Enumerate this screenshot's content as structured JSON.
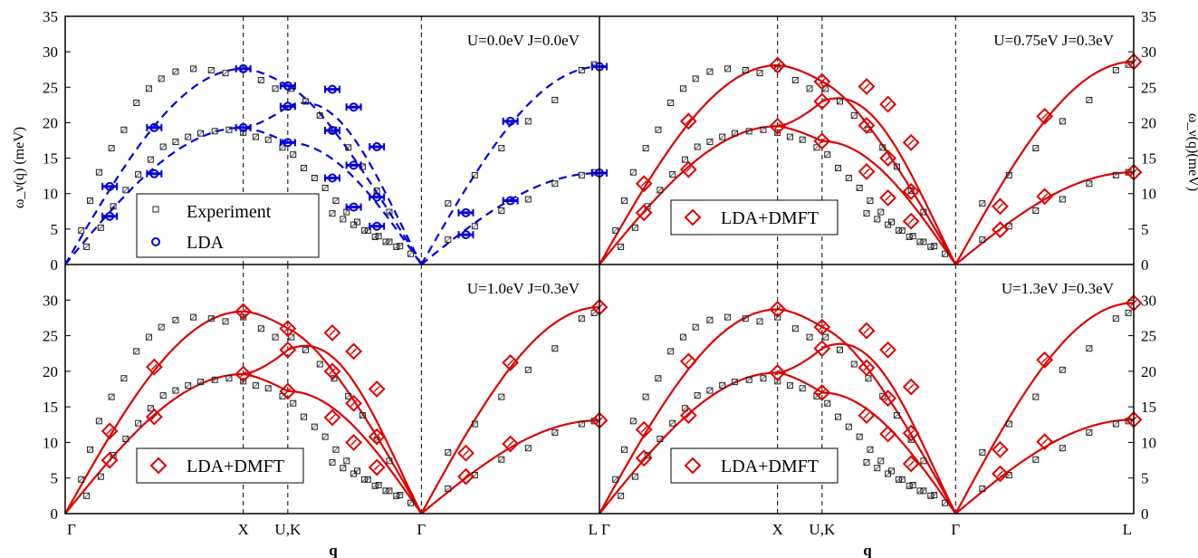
{
  "figure": {
    "ylabel_left": "ω_ν(q) (meV)",
    "ylabel_right": "ω_ν(q)(meV)",
    "xlabel": "q",
    "y_ticks": [
      "0",
      "5",
      "10",
      "15",
      "20",
      "25",
      "30",
      "35"
    ],
    "x_ticks": [
      "Γ",
      "X",
      "U,K",
      "Γ",
      "L"
    ],
    "x_tick_positions": [
      0,
      1,
      1.25,
      2,
      3
    ]
  },
  "chart_data": [
    {
      "type": "line",
      "panel": "top-left",
      "annotation": "U=0.0eV J=0.0eV",
      "legend": [
        "Experiment",
        "LDA"
      ],
      "legend_position": "bottom-left",
      "line_style": "dashed",
      "color": "#0000dd",
      "ylim": [
        0,
        35
      ],
      "experiment_points": [
        [
          0.09,
          4.8
        ],
        [
          0.14,
          9.0
        ],
        [
          0.19,
          13.0
        ],
        [
          0.26,
          16.4
        ],
        [
          0.33,
          19.0
        ],
        [
          0.4,
          22.8
        ],
        [
          0.47,
          24.8
        ],
        [
          0.54,
          26.2
        ],
        [
          0.62,
          27.2
        ],
        [
          0.72,
          27.6
        ],
        [
          0.82,
          27.4
        ],
        [
          0.9,
          27.0
        ],
        [
          1.0,
          27.6
        ],
        [
          1.1,
          26.0
        ],
        [
          1.18,
          24.8
        ],
        [
          0.12,
          2.5
        ],
        [
          0.2,
          5.2
        ],
        [
          0.27,
          8.2
        ],
        [
          0.34,
          10.5
        ],
        [
          0.41,
          12.7
        ],
        [
          0.48,
          14.8
        ],
        [
          0.55,
          16.6
        ],
        [
          0.62,
          17.3
        ],
        [
          0.69,
          18.0
        ],
        [
          0.76,
          18.5
        ],
        [
          0.84,
          18.8
        ],
        [
          0.92,
          19.0
        ],
        [
          1.0,
          18.6
        ],
        [
          1.07,
          18.0
        ],
        [
          1.14,
          17.6
        ],
        [
          1.27,
          24.8
        ],
        [
          1.35,
          23.0
        ],
        [
          1.43,
          21.0
        ],
        [
          1.51,
          19.0
        ],
        [
          1.59,
          16.5
        ],
        [
          1.67,
          13.8
        ],
        [
          1.75,
          10.4
        ],
        [
          1.82,
          7.4
        ],
        [
          1.22,
          16.5
        ],
        [
          1.28,
          15.5
        ],
        [
          1.34,
          13.6
        ],
        [
          1.4,
          12.2
        ],
        [
          1.46,
          10.8
        ],
        [
          1.52,
          9.0
        ],
        [
          1.58,
          7.4
        ],
        [
          1.64,
          6.0
        ],
        [
          1.7,
          4.8
        ],
        [
          1.76,
          4.0
        ],
        [
          1.82,
          3.2
        ],
        [
          1.88,
          2.6
        ],
        [
          1.94,
          1.5
        ],
        [
          1.5,
          7.2
        ],
        [
          1.56,
          6.4
        ],
        [
          1.62,
          5.6
        ],
        [
          1.68,
          4.8
        ],
        [
          1.74,
          3.9
        ],
        [
          1.8,
          3.2
        ],
        [
          1.86,
          2.5
        ],
        [
          2.15,
          8.6
        ],
        [
          2.3,
          12.6
        ],
        [
          2.45,
          16.4
        ],
        [
          2.6,
          20.2
        ],
        [
          2.75,
          23.2
        ],
        [
          2.9,
          27.4
        ],
        [
          2.97,
          28.2
        ],
        [
          2.15,
          3.5
        ],
        [
          2.3,
          5.4
        ],
        [
          2.45,
          7.6
        ],
        [
          2.6,
          9.2
        ],
        [
          2.75,
          11.4
        ],
        [
          2.9,
          12.6
        ],
        [
          2.97,
          13.0
        ]
      ],
      "calc_points": [
        [
          0.25,
          11.0
        ],
        [
          0.5,
          19.3
        ],
        [
          1.0,
          27.6
        ],
        [
          1.25,
          25.2
        ],
        [
          0.25,
          6.8
        ],
        [
          0.5,
          12.8
        ],
        [
          1.0,
          19.3
        ],
        [
          1.25,
          17.2
        ],
        [
          1.25,
          22.3
        ],
        [
          1.5,
          24.7
        ],
        [
          1.5,
          18.9
        ],
        [
          1.62,
          22.2
        ],
        [
          1.62,
          14.0
        ],
        [
          1.75,
          16.6
        ],
        [
          1.5,
          12.2
        ],
        [
          1.62,
          8.1
        ],
        [
          1.75,
          9.5
        ],
        [
          1.75,
          5.4
        ],
        [
          2.25,
          7.3
        ],
        [
          2.25,
          4.2
        ],
        [
          2.5,
          20.2
        ],
        [
          2.5,
          9.0
        ],
        [
          3.0,
          27.9
        ],
        [
          3.0,
          12.9
        ]
      ]
    },
    {
      "type": "line",
      "panel": "top-right",
      "annotation": "U=0.75eV J=0.3eV",
      "legend": [
        "LDA+DMFT"
      ],
      "legend_position": "bottom-left",
      "line_style": "solid",
      "color": "#dd0000",
      "ylim": [
        0,
        35
      ],
      "calc_points": [
        [
          0.25,
          11.4
        ],
        [
          0.5,
          20.2
        ],
        [
          1.0,
          28.1
        ],
        [
          1.25,
          25.8
        ],
        [
          0.25,
          7.3
        ],
        [
          0.5,
          13.4
        ],
        [
          1.0,
          19.5
        ],
        [
          1.25,
          17.4
        ],
        [
          1.25,
          23.0
        ],
        [
          1.5,
          25.1
        ],
        [
          1.5,
          19.6
        ],
        [
          1.62,
          22.6
        ],
        [
          1.62,
          15.0
        ],
        [
          1.75,
          17.2
        ],
        [
          1.5,
          13.1
        ],
        [
          1.62,
          9.4
        ],
        [
          1.75,
          10.3
        ],
        [
          1.75,
          6.1
        ],
        [
          2.25,
          8.2
        ],
        [
          2.25,
          4.9
        ],
        [
          2.5,
          20.9
        ],
        [
          2.5,
          9.6
        ],
        [
          3.0,
          28.6
        ],
        [
          3.0,
          13.0
        ]
      ]
    },
    {
      "type": "line",
      "panel": "bottom-left",
      "annotation": "U=1.0eV J=0.3eV",
      "legend": [
        "LDA+DMFT"
      ],
      "legend_position": "bottom-left",
      "line_style": "solid",
      "color": "#dd0000",
      "ylim": [
        0,
        35
      ],
      "calc_points": [
        [
          0.25,
          11.6
        ],
        [
          0.5,
          20.6
        ],
        [
          1.0,
          28.4
        ],
        [
          1.25,
          26.0
        ],
        [
          0.25,
          7.5
        ],
        [
          0.5,
          13.6
        ],
        [
          1.0,
          19.6
        ],
        [
          1.25,
          17.2
        ],
        [
          1.25,
          23.0
        ],
        [
          1.5,
          25.4
        ],
        [
          1.5,
          20.0
        ],
        [
          1.62,
          22.8
        ],
        [
          1.62,
          15.5
        ],
        [
          1.75,
          17.5
        ],
        [
          1.5,
          13.5
        ],
        [
          1.62,
          10.0
        ],
        [
          1.75,
          10.8
        ],
        [
          1.75,
          6.5
        ],
        [
          2.25,
          8.5
        ],
        [
          2.25,
          5.2
        ],
        [
          2.5,
          21.2
        ],
        [
          2.5,
          9.8
        ],
        [
          3.0,
          29.0
        ],
        [
          3.0,
          13.1
        ]
      ]
    },
    {
      "type": "line",
      "panel": "bottom-right",
      "annotation": "U=1.3eV J=0.3eV",
      "legend": [
        "LDA+DMFT"
      ],
      "legend_position": "bottom-left",
      "line_style": "solid",
      "color": "#dd0000",
      "ylim": [
        0,
        35
      ],
      "calc_points": [
        [
          0.25,
          11.8
        ],
        [
          0.5,
          21.4
        ],
        [
          1.0,
          28.7
        ],
        [
          1.25,
          26.2
        ],
        [
          0.25,
          7.8
        ],
        [
          0.5,
          13.8
        ],
        [
          1.0,
          19.8
        ],
        [
          1.25,
          17.0
        ],
        [
          1.25,
          23.2
        ],
        [
          1.5,
          25.7
        ],
        [
          1.5,
          20.5
        ],
        [
          1.62,
          23.0
        ],
        [
          1.62,
          16.2
        ],
        [
          1.75,
          17.8
        ],
        [
          1.5,
          13.8
        ],
        [
          1.62,
          11.2
        ],
        [
          1.75,
          11.3
        ],
        [
          1.75,
          7.0
        ],
        [
          2.25,
          9.0
        ],
        [
          2.25,
          5.6
        ],
        [
          2.5,
          21.6
        ],
        [
          2.5,
          10.1
        ],
        [
          3.0,
          29.6
        ],
        [
          3.0,
          13.2
        ]
      ]
    }
  ]
}
